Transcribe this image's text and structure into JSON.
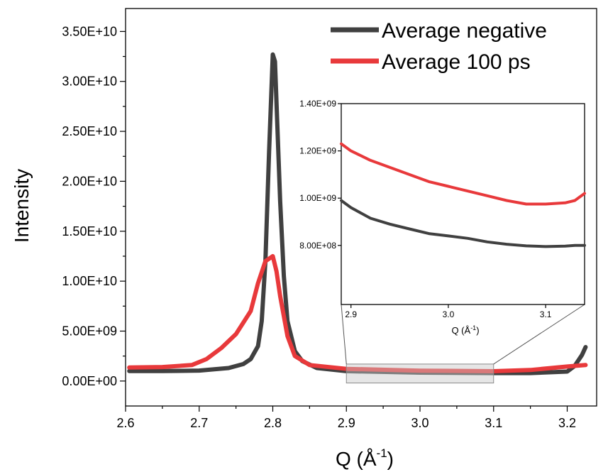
{
  "chart_data": [
    {
      "type": "line",
      "title": "",
      "xlabel": "Q (Å",
      "xlabel_sup": "-1",
      "xlabel_close": ")",
      "ylabel": "Intensity",
      "xlim": [
        2.6,
        3.24
      ],
      "ylim": [
        -2500000000.0,
        37300000000.0
      ],
      "xticks": [
        2.6,
        2.7,
        2.8,
        2.9,
        3.0,
        3.1,
        3.2
      ],
      "xtick_labels": [
        "2.6",
        "2.7",
        "2.8",
        "2.9",
        "3.0",
        "3.1",
        "3.2"
      ],
      "yticks": [
        0,
        5000000000.0,
        10000000000.0,
        15000000000.0,
        20000000000.0,
        25000000000.0,
        30000000000.0,
        35000000000.0
      ],
      "ytick_labels": [
        "0.00E+00",
        "5.00E+09",
        "1.00E+10",
        "1.50E+10",
        "2.00E+10",
        "2.50E+10",
        "3.00E+10",
        "3.50E+10"
      ],
      "legend": {
        "placement": "top-right"
      },
      "grid": false,
      "zoom_region": {
        "x": [
          2.9,
          3.1
        ],
        "y": [
          -200000000.0,
          1700000000.0
        ]
      },
      "series": [
        {
          "name": "Average negative",
          "color": "#404040",
          "x": [
            2.605,
            2.65,
            2.7,
            2.74,
            2.76,
            2.77,
            2.78,
            2.785,
            2.79,
            2.795,
            2.8,
            2.803,
            2.806,
            2.81,
            2.815,
            2.82,
            2.83,
            2.84,
            2.86,
            2.9,
            3.0,
            3.1,
            3.15,
            3.2,
            3.21,
            3.22,
            3.225
          ],
          "values": [
            1000000000.0,
            1000000000.0,
            1050000000.0,
            1300000000.0,
            1700000000.0,
            2200000000.0,
            3500000000.0,
            6000000000.0,
            12000000000.0,
            23000000000.0,
            32700000000.0,
            32000000000.0,
            26000000000.0,
            18000000000.0,
            10500000000.0,
            6000000000.0,
            3000000000.0,
            2000000000.0,
            1300000000.0,
            990000000.0,
            840000000.0,
            800000000.0,
            800000000.0,
            950000000.0,
            1500000000.0,
            2600000000.0,
            3400000000.0
          ]
        },
        {
          "name": "Average 100 ps",
          "color": "#e8393b",
          "x": [
            2.605,
            2.65,
            2.69,
            2.71,
            2.73,
            2.75,
            2.77,
            2.78,
            2.79,
            2.8,
            2.805,
            2.81,
            2.82,
            2.83,
            2.85,
            2.9,
            3.0,
            3.1,
            3.15,
            3.2,
            3.225
          ],
          "values": [
            1350000000.0,
            1400000000.0,
            1600000000.0,
            2200000000.0,
            3300000000.0,
            4700000000.0,
            7000000000.0,
            9800000000.0,
            12000000000.0,
            12500000000.0,
            11000000000.0,
            8500000000.0,
            4500000000.0,
            2500000000.0,
            1600000000.0,
            1220000000.0,
            1040000000.0,
            980000000.0,
            1100000000.0,
            1450000000.0,
            1600000000.0
          ]
        }
      ]
    },
    {
      "type": "line",
      "title": "",
      "xlabel": "Q (Å",
      "xlabel_sup": "-1",
      "xlabel_close": ")",
      "ylabel": "",
      "xlim": [
        2.89,
        3.14
      ],
      "ylim": [
        550000000.0,
        1400000000.0
      ],
      "xticks": [
        2.9,
        3.0,
        3.1
      ],
      "xtick_labels": [
        "2.9",
        "3.0",
        "3.1"
      ],
      "yticks": [
        800000000.0,
        1000000000.0,
        1200000000.0,
        1400000000.0
      ],
      "ytick_labels": [
        "8.00E+08",
        "1.00E+09",
        "1.20E+09",
        "1.40E+09"
      ],
      "grid": false,
      "series": [
        {
          "name": "Average negative",
          "color": "#404040",
          "x": [
            2.89,
            2.9,
            2.92,
            2.94,
            2.96,
            2.98,
            3.0,
            3.02,
            3.04,
            3.06,
            3.08,
            3.1,
            3.12,
            3.13,
            3.14
          ],
          "values": [
            990000000.0,
            960000000.0,
            915000000.0,
            890000000.0,
            870000000.0,
            850000000.0,
            840000000.0,
            830000000.0,
            815000000.0,
            805000000.0,
            798000000.0,
            795000000.0,
            797000000.0,
            800000000.0,
            800000000.0
          ]
        },
        {
          "name": "Average 100 ps",
          "color": "#e8393b",
          "x": [
            2.89,
            2.9,
            2.92,
            2.94,
            2.96,
            2.98,
            3.0,
            3.02,
            3.04,
            3.06,
            3.08,
            3.1,
            3.12,
            3.13,
            3.14
          ],
          "values": [
            1230000000.0,
            1200000000.0,
            1160000000.0,
            1130000000.0,
            1100000000.0,
            1070000000.0,
            1050000000.0,
            1030000000.0,
            1010000000.0,
            990000000.0,
            975000000.0,
            975000000.0,
            980000000.0,
            990000000.0,
            1020000000.0
          ]
        }
      ]
    }
  ]
}
